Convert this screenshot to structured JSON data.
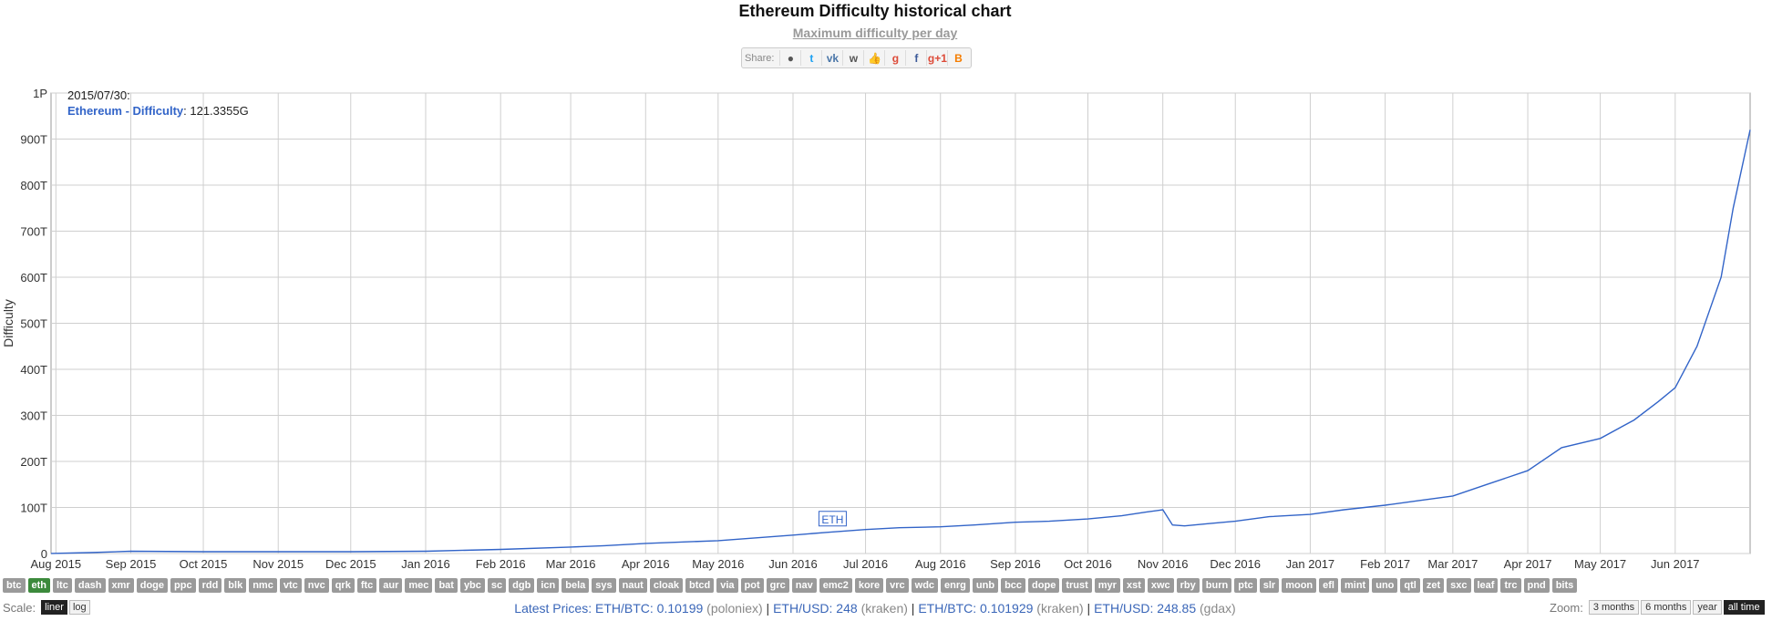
{
  "header": {
    "title": "Ethereum Difficulty historical chart",
    "subtitle": "Maximum difficulty per day"
  },
  "share": {
    "label": "Share:",
    "buttons": [
      {
        "name": "reddit-icon",
        "glyph": "●",
        "color": "#555"
      },
      {
        "name": "twitter-icon",
        "glyph": "t",
        "color": "#1da1f2"
      },
      {
        "name": "vk-icon",
        "glyph": "vk",
        "color": "#4a76a8"
      },
      {
        "name": "weibo-icon",
        "glyph": "w",
        "color": "#555"
      },
      {
        "name": "like-icon",
        "glyph": "👍",
        "color": "#4a76a8"
      },
      {
        "name": "google-plus-icon",
        "glyph": "g",
        "color": "#dd4b39"
      },
      {
        "name": "facebook-icon",
        "glyph": "f",
        "color": "#3b5998"
      },
      {
        "name": "google-plus-one-icon",
        "glyph": "g+1",
        "color": "#dd4b39"
      },
      {
        "name": "blogger-icon",
        "glyph": "B",
        "color": "#f57d00"
      }
    ]
  },
  "tooltip": {
    "date": "2015/07/30:",
    "series": "Ethereum - Difficulty",
    "value": "121.3355G"
  },
  "chart_data": {
    "type": "line",
    "ylabel": "Difficulty",
    "xlabel": "",
    "y_ticks": [
      "0",
      "100T",
      "200T",
      "300T",
      "400T",
      "500T",
      "600T",
      "700T",
      "800T",
      "900T",
      "1P"
    ],
    "ylim": [
      0,
      1000
    ],
    "y_unit": "T",
    "x_ticks": [
      "Aug 2015",
      "Sep 2015",
      "Oct 2015",
      "Nov 2015",
      "Dec 2015",
      "Jan 2016",
      "Feb 2016",
      "Mar 2016",
      "Apr 2016",
      "May 2016",
      "Jun 2016",
      "Jul 2016",
      "Aug 2016",
      "Sep 2016",
      "Oct 2016",
      "Nov 2016",
      "Dec 2016",
      "Jan 2017",
      "Feb 2017",
      "Mar 2017",
      "Apr 2017",
      "May 2017",
      "Jun 2017"
    ],
    "xlim": [
      "2015-07-30",
      "2017-07-02"
    ],
    "grid": true,
    "annotation": "ETH",
    "series": [
      {
        "name": "Ethereum - Difficulty",
        "color": "#3264c8",
        "x": [
          "2015-07-30",
          "2015-08-15",
          "2015-09-01",
          "2015-10-01",
          "2015-11-01",
          "2015-12-01",
          "2016-01-01",
          "2016-02-01",
          "2016-03-01",
          "2016-03-15",
          "2016-04-01",
          "2016-05-01",
          "2016-06-01",
          "2016-06-15",
          "2016-07-01",
          "2016-07-15",
          "2016-08-01",
          "2016-08-15",
          "2016-09-01",
          "2016-09-15",
          "2016-10-01",
          "2016-10-15",
          "2016-10-25",
          "2016-11-01",
          "2016-11-05",
          "2016-11-10",
          "2016-11-20",
          "2016-12-01",
          "2016-12-15",
          "2017-01-01",
          "2017-01-15",
          "2017-02-01",
          "2017-02-15",
          "2017-03-01",
          "2017-03-15",
          "2017-04-01",
          "2017-04-15",
          "2017-05-01",
          "2017-05-15",
          "2017-05-25",
          "2017-06-01",
          "2017-06-10",
          "2017-06-20",
          "2017-06-25",
          "2017-07-02"
        ],
        "values": [
          0.12,
          2,
          5,
          4,
          4,
          4,
          5,
          9,
          14,
          17,
          22,
          28,
          40,
          46,
          52,
          56,
          58,
          62,
          68,
          70,
          75,
          82,
          90,
          95,
          62,
          60,
          65,
          70,
          80,
          85,
          95,
          105,
          115,
          125,
          150,
          180,
          230,
          250,
          290,
          330,
          360,
          450,
          600,
          750,
          920
        ]
      }
    ]
  },
  "coins": [
    "btc",
    "eth",
    "ltc",
    "dash",
    "xmr",
    "doge",
    "ppc",
    "rdd",
    "blk",
    "nmc",
    "vtc",
    "nvc",
    "qrk",
    "ftc",
    "aur",
    "mec",
    "bat",
    "ybc",
    "sc",
    "dgb",
    "icn",
    "bela",
    "sys",
    "naut",
    "cloak",
    "btcd",
    "via",
    "pot",
    "grc",
    "nav",
    "emc2",
    "kore",
    "vrc",
    "wdc",
    "enrg",
    "unb",
    "bcc",
    "dope",
    "trust",
    "myr",
    "xst",
    "xwc",
    "rby",
    "burn",
    "ptc",
    "slr",
    "moon",
    "efl",
    "mint",
    "uno",
    "qtl",
    "zet",
    "sxc",
    "leaf",
    "trc",
    "pnd",
    "bits"
  ],
  "active_coin": "eth",
  "scale": {
    "label": "Scale:",
    "options": [
      "liner",
      "log"
    ],
    "active": "liner"
  },
  "prices": {
    "label": "Latest Prices:",
    "items": [
      {
        "pair": "ETH/BTC: 0.10199",
        "exchange": "(poloniex)"
      },
      {
        "pair": "ETH/USD: 248",
        "exchange": "(kraken)"
      },
      {
        "pair": "ETH/BTC: 0.101929",
        "exchange": "(kraken)"
      },
      {
        "pair": "ETH/USD: 248.85",
        "exchange": "(gdax)"
      }
    ]
  },
  "zoom": {
    "label": "Zoom:",
    "options": [
      "3 months",
      "6 months",
      "year",
      "all time"
    ],
    "active": "all time"
  }
}
